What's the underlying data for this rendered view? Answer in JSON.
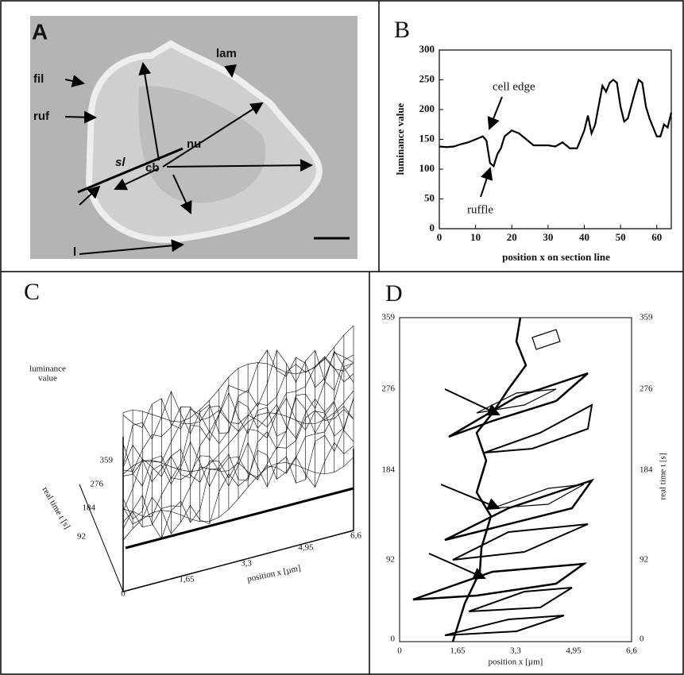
{
  "panel_a": {
    "letter": "A",
    "labels": [
      "fil",
      "ruf",
      "lam",
      "nu",
      "cb",
      "sl",
      "l"
    ]
  },
  "chart_data": {
    "type": "line",
    "letter": "B",
    "y_label": "luminance value",
    "x_label": "position x on section line",
    "annotations": [
      "cell edge",
      "ruffle"
    ],
    "x": [
      0,
      2,
      4,
      6,
      8,
      10,
      12,
      13,
      14,
      15,
      16,
      17,
      18,
      20,
      22,
      24,
      26,
      28,
      30,
      32,
      34,
      36,
      38,
      40,
      41,
      42,
      43,
      45,
      46,
      47,
      48,
      49,
      50,
      51,
      52,
      54,
      55,
      56,
      57,
      58,
      60,
      61,
      62,
      63,
      64
    ],
    "values": [
      138,
      137,
      138,
      142,
      145,
      150,
      155,
      148,
      110,
      105,
      125,
      135,
      155,
      165,
      160,
      150,
      140,
      140,
      140,
      138,
      145,
      135,
      135,
      165,
      190,
      160,
      175,
      240,
      230,
      245,
      250,
      245,
      205,
      180,
      185,
      230,
      250,
      245,
      205,
      185,
      155,
      155,
      175,
      170,
      195
    ],
    "color": "#000000",
    "xlim": [
      0,
      64
    ],
    "ylim": [
      0,
      300
    ],
    "xticks": [
      0,
      10,
      20,
      30,
      40,
      50,
      60
    ],
    "yticks": [
      0,
      50,
      100,
      150,
      200,
      250,
      300
    ]
  },
  "panel_c": {
    "letter": "C",
    "z_label": [
      "luminance",
      "value"
    ],
    "t_ticks": [
      "359",
      "276",
      "184",
      "92",
      "0"
    ],
    "t_label": "real time  t  [s]",
    "x_ticks": [
      "1,65",
      "3,3",
      "4,95",
      "6,6"
    ],
    "x_label": "position x  [µm]"
  },
  "panel_d": {
    "letter": "D",
    "t_ticks": [
      "359",
      "276",
      "184",
      "92",
      "0"
    ],
    "x_ticks": [
      "0",
      "1,65",
      "3,3",
      "4,95",
      "6,6"
    ],
    "x_label": "position x  [µm]",
    "t_label": "real time  t  [s]"
  }
}
